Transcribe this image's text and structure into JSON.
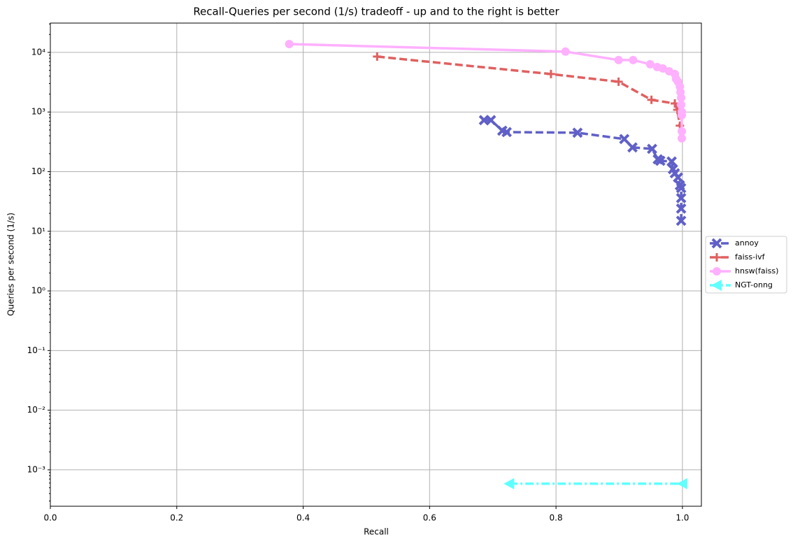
{
  "chart_data": {
    "type": "line",
    "title": "Recall-Queries per second (1/s) tradeoff - up and to the right is better",
    "x_label": "Recall",
    "y_label": "Queries per second (1/s)",
    "xlim": [
      0,
      1.03
    ],
    "ylim": [
      0.000245,
      31000
    ],
    "y_scale": "log",
    "grid": true,
    "legend": "right",
    "xticks": [
      {
        "value": 0,
        "label": "0.0"
      },
      0.2,
      0.4,
      0.6,
      0.8,
      {
        "value": 1,
        "label": "1.0"
      }
    ],
    "yticks": [
      {
        "value": 0.001,
        "label": "10⁻³"
      },
      {
        "value": 0.01,
        "label": "10⁻²"
      },
      {
        "value": 0.1,
        "label": "10⁻¹"
      },
      {
        "value": 1,
        "label": "10⁰"
      },
      {
        "value": 10,
        "label": "10¹"
      },
      {
        "value": 100,
        "label": "10²"
      },
      {
        "value": 1000,
        "label": "10³"
      },
      {
        "value": 10000,
        "label": "10⁴"
      }
    ],
    "series": [
      {
        "name": "annoy",
        "color": "#6060c8",
        "linestyle": "dashed",
        "marker": "x",
        "x": [
          0.686,
          0.697,
          0.715,
          0.722,
          0.834,
          0.908,
          0.921,
          0.952,
          0.961,
          0.965,
          0.983,
          0.985,
          0.988,
          0.993,
          0.996,
          0.998,
          0.998,
          0.998,
          0.998
        ],
        "values": [
          730,
          730,
          486,
          461,
          449,
          352,
          255,
          241,
          161,
          152,
          148,
          110,
          94,
          80,
          59,
          53,
          36,
          24,
          15
        ]
      },
      {
        "name": "faiss-ivf",
        "color": "#e06060",
        "linestyle": "dashed",
        "marker": "plus",
        "x": [
          0.517,
          0.792,
          0.899,
          0.951,
          0.988,
          0.992,
          0.996
        ],
        "values": [
          8500,
          4330,
          3220,
          1600,
          1390,
          1090,
          590
        ]
      },
      {
        "name": "hnsw(faiss)",
        "color": "#ffb0ff",
        "linestyle": "solid",
        "marker": "circle",
        "x": [
          0.378,
          0.815,
          0.899,
          0.922,
          0.949,
          0.96,
          0.969,
          0.979,
          0.988,
          0.99,
          0.993,
          0.996,
          0.997,
          0.998,
          0.998,
          0.999,
          0.999,
          0.999,
          0.999
        ],
        "values": [
          13800,
          10300,
          7440,
          7440,
          6320,
          5680,
          5370,
          4820,
          4330,
          3590,
          3220,
          2670,
          2150,
          1730,
          1320,
          1010,
          880,
          473,
          361
        ]
      },
      {
        "name": "NGT-onng",
        "color": "#60ffff",
        "linestyle": "dashdot",
        "marker": "triangle-left",
        "x": [
          0.726,
          1.0
        ],
        "values": [
          0.000585,
          0.000585
        ]
      }
    ]
  }
}
